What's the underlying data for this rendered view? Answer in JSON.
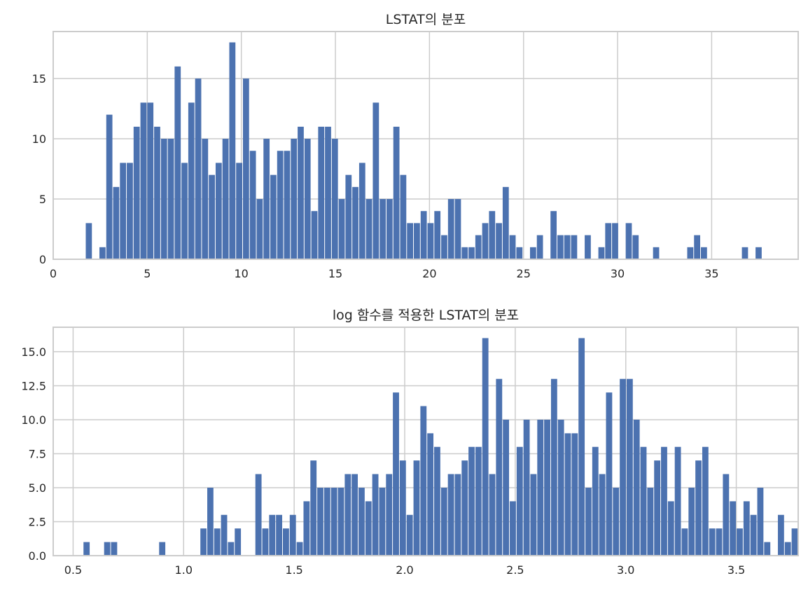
{
  "chart_data": [
    {
      "type": "bar",
      "title": "LSTAT의 분포",
      "xlabel": "",
      "ylabel": "",
      "xlim": [
        0,
        39.6
      ],
      "ylim": [
        0,
        18.9
      ],
      "x_ticks": [
        "0",
        "5",
        "10",
        "15",
        "20",
        "25",
        "30",
        "35"
      ],
      "y_ticks": [
        "0",
        "5",
        "10",
        "15"
      ],
      "grid": true,
      "bar_color": "#4c72b0",
      "bin_start": 1.73,
      "bin_width": 0.3633,
      "counts": [
        3,
        0,
        1,
        12,
        6,
        8,
        8,
        11,
        13,
        13,
        11,
        10,
        10,
        16,
        8,
        13,
        15,
        10,
        7,
        8,
        10,
        18,
        8,
        15,
        9,
        5,
        10,
        7,
        9,
        9,
        10,
        11,
        10,
        4,
        11,
        11,
        10,
        5,
        7,
        6,
        8,
        5,
        13,
        5,
        5,
        11,
        7,
        3,
        3,
        4,
        3,
        4,
        2,
        5,
        5,
        1,
        1,
        2,
        3,
        4,
        3,
        6,
        2,
        1,
        0,
        1,
        2,
        0,
        4,
        2,
        2,
        2,
        0,
        2,
        0,
        1,
        3,
        3,
        0,
        3,
        2,
        0,
        0,
        1,
        0,
        0,
        0,
        0,
        1,
        2,
        1,
        0,
        0,
        0,
        0,
        0,
        1,
        0,
        1
      ]
    },
    {
      "type": "bar",
      "title": "log 함수를 적용한 LSTAT의 분포",
      "xlabel": "",
      "ylabel": "",
      "xlim": [
        0.41,
        3.78
      ],
      "ylim": [
        0,
        16.8
      ],
      "x_ticks": [
        "0.5",
        "1.0",
        "1.5",
        "2.0",
        "2.5",
        "3.0",
        "3.5"
      ],
      "y_ticks": [
        "0.0",
        "2.5",
        "5.0",
        "7.5",
        "10.0",
        "12.5",
        "15.0"
      ],
      "grid": true,
      "bar_color": "#4c72b0",
      "bin_start": 0.547,
      "bin_width": 0.0311,
      "counts": [
        1,
        0,
        0,
        1,
        1,
        0,
        0,
        0,
        0,
        0,
        0,
        1,
        0,
        0,
        0,
        0,
        0,
        2,
        5,
        2,
        3,
        1,
        2,
        0,
        0,
        6,
        2,
        3,
        3,
        2,
        3,
        1,
        4,
        7,
        5,
        5,
        5,
        5,
        6,
        6,
        5,
        4,
        6,
        5,
        6,
        12,
        7,
        3,
        7,
        11,
        9,
        8,
        5,
        6,
        6,
        7,
        8,
        8,
        16,
        6,
        13,
        10,
        4,
        8,
        10,
        6,
        10,
        10,
        13,
        10,
        9,
        9,
        16,
        5,
        8,
        6,
        12,
        5,
        13,
        13,
        10,
        8,
        5,
        7,
        8,
        4,
        8,
        2,
        5,
        7,
        8,
        2,
        2,
        6,
        4,
        2,
        4,
        3,
        5,
        1,
        0,
        3,
        1,
        2
      ]
    }
  ]
}
